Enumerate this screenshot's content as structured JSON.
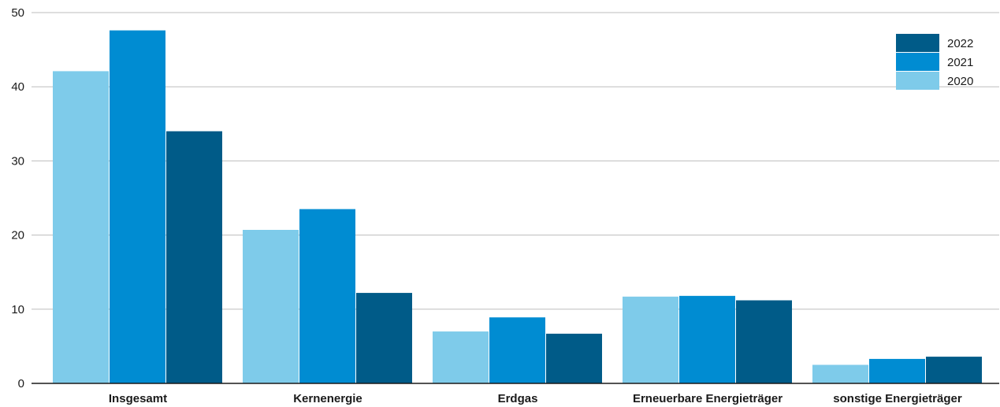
{
  "chart_data": {
    "type": "bar",
    "title": "",
    "xlabel": "",
    "ylabel": "",
    "ylim": [
      0,
      50
    ],
    "yticks": [
      "0",
      "10",
      "20",
      "30",
      "40",
      "50"
    ],
    "grid": true,
    "legend_position": "top-right",
    "categories": [
      "Insgesamt",
      "Kernenergie",
      "Erdgas",
      "Erneuerbare Energieträger",
      "sonstige Energieträger"
    ],
    "series": [
      {
        "name": "2020",
        "color": "#7ecbea",
        "values": [
          42.1,
          20.7,
          7.0,
          11.7,
          2.5
        ]
      },
      {
        "name": "2021",
        "color": "#008cd2",
        "values": [
          47.6,
          23.5,
          8.9,
          11.8,
          3.3
        ]
      },
      {
        "name": "2022",
        "color": "#005b88",
        "values": [
          34.0,
          12.2,
          6.7,
          11.2,
          3.6
        ]
      }
    ],
    "legend_order": [
      "2022",
      "2021",
      "2020"
    ]
  }
}
